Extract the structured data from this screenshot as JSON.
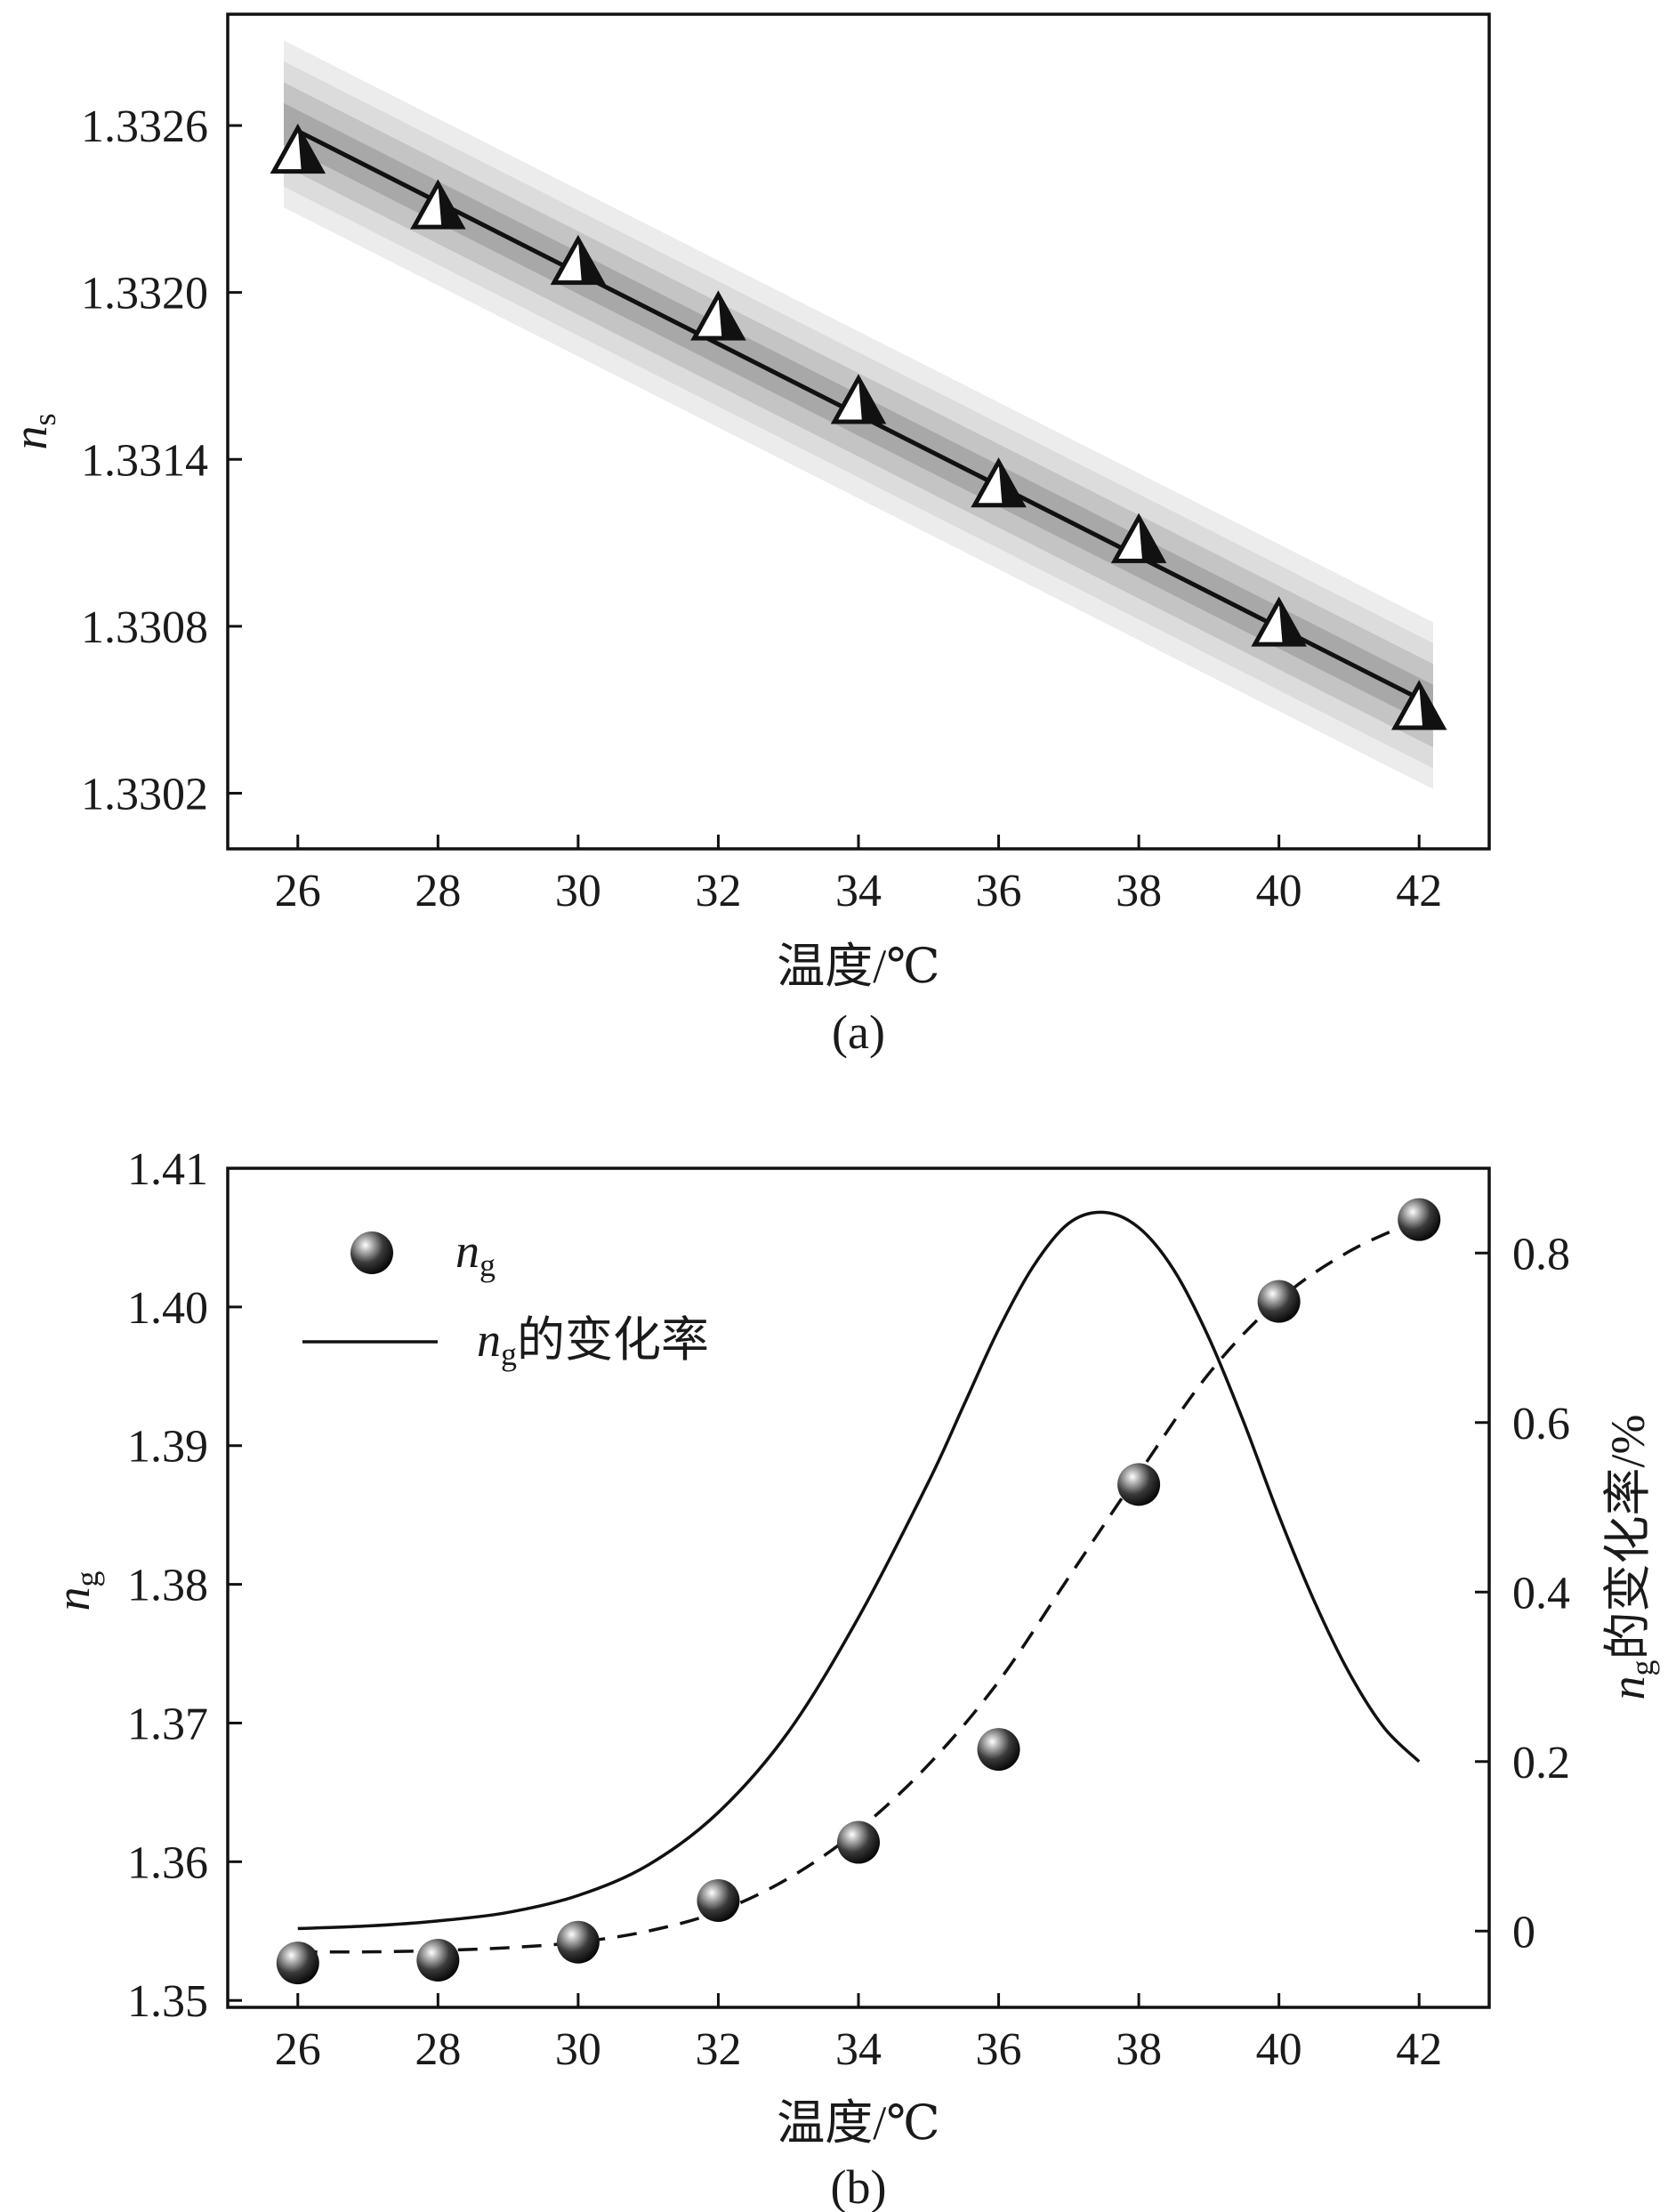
{
  "chart_data": [
    {
      "panel": "(a)",
      "type": "line",
      "xlabel": "温度/℃",
      "ylabel_main": "n",
      "ylabel_sub": "s",
      "xlim": [
        25,
        43
      ],
      "ylim": [
        1.33,
        1.333
      ],
      "xticks": [
        26,
        28,
        30,
        32,
        34,
        36,
        38,
        40,
        42
      ],
      "yticks": [
        1.3302,
        1.3308,
        1.3314,
        1.332,
        1.3326
      ],
      "ytick_labels": [
        "1.3302",
        "1.3308",
        "1.3314",
        "1.3320",
        "1.3326"
      ],
      "series": [
        {
          "kind": "markers",
          "marker": "triangle",
          "x": [
            26,
            28,
            30,
            32,
            34,
            36,
            38,
            40,
            42
          ],
          "y": [
            1.3325,
            1.3323,
            1.3321,
            1.3319,
            1.3316,
            1.3313,
            1.3311,
            1.3308,
            1.3305
          ]
        },
        {
          "kind": "fit_line",
          "x": [
            26,
            42
          ],
          "y": [
            1.33258,
            1.33054
          ]
        },
        {
          "kind": "band",
          "x": [
            26,
            42
          ],
          "lower": [
            1.33243,
            1.33039
          ],
          "upper": [
            1.33273,
            1.33069
          ]
        }
      ],
      "grid": false
    },
    {
      "panel": "(b)",
      "type": "scatter",
      "xlabel": "温度/℃",
      "ylabel_main": "n",
      "ylabel_sub": "g",
      "ylabel_right_main": "n",
      "ylabel_right_sub": "g",
      "ylabel_right_rest": "的变化率/%",
      "xlim": [
        25,
        43
      ],
      "ylim": [
        1.3495,
        1.41
      ],
      "ylim_right": [
        -0.09,
        0.9
      ],
      "xticks": [
        26,
        28,
        30,
        32,
        34,
        36,
        38,
        40,
        42
      ],
      "yticks": [
        1.35,
        1.36,
        1.37,
        1.38,
        1.39,
        1.4,
        1.41
      ],
      "ytick_labels": [
        "1.35",
        "1.36",
        "1.37",
        "1.38",
        "1.39",
        "1.40",
        "1.41"
      ],
      "yticks_right": [
        0,
        0.2,
        0.4,
        0.6,
        0.8
      ],
      "ytick_labels_right": [
        "0",
        "0.2",
        "0.4",
        "0.6",
        "0.8"
      ],
      "legend_position": "top-left",
      "legend": [
        {
          "main": "n",
          "sub": "g",
          "rest": "",
          "symbol": "sphere"
        },
        {
          "main": "n",
          "sub": "g",
          "rest": "的变化率",
          "symbol": "line"
        }
      ],
      "series": [
        {
          "name": "ng",
          "kind": "markers",
          "marker": "sphere",
          "x": [
            26,
            28,
            30,
            32,
            34,
            36,
            38,
            40,
            42
          ],
          "y": [
            1.3527,
            1.3529,
            1.3542,
            1.3572,
            1.3614,
            1.3681,
            1.3872,
            1.4004,
            1.4063
          ]
        },
        {
          "kind": "dashed_fit",
          "axis": "left",
          "x": [
            26,
            27,
            28,
            29,
            30,
            31,
            32,
            33,
            34,
            35,
            36,
            37,
            38,
            39,
            40,
            41,
            42
          ],
          "y": [
            1.3535,
            1.3535,
            1.3536,
            1.3538,
            1.3542,
            1.355,
            1.3564,
            1.3588,
            1.3623,
            1.367,
            1.373,
            1.3805,
            1.388,
            1.3952,
            1.4005,
            1.404,
            1.4063
          ]
        },
        {
          "name": "ng的变化率",
          "kind": "line",
          "axis": "right",
          "x": [
            26,
            27,
            28,
            29,
            30,
            31,
            32,
            33,
            34,
            35,
            35.5,
            36,
            36.5,
            37,
            37.5,
            38,
            38.5,
            39,
            39.5,
            40,
            40.5,
            41,
            41.5,
            42
          ],
          "y": [
            0.003,
            0.006,
            0.012,
            0.022,
            0.042,
            0.078,
            0.14,
            0.235,
            0.37,
            0.53,
            0.62,
            0.71,
            0.785,
            0.835,
            0.848,
            0.83,
            0.78,
            0.7,
            0.6,
            0.49,
            0.39,
            0.305,
            0.24,
            0.2
          ]
        }
      ],
      "grid": false
    }
  ]
}
